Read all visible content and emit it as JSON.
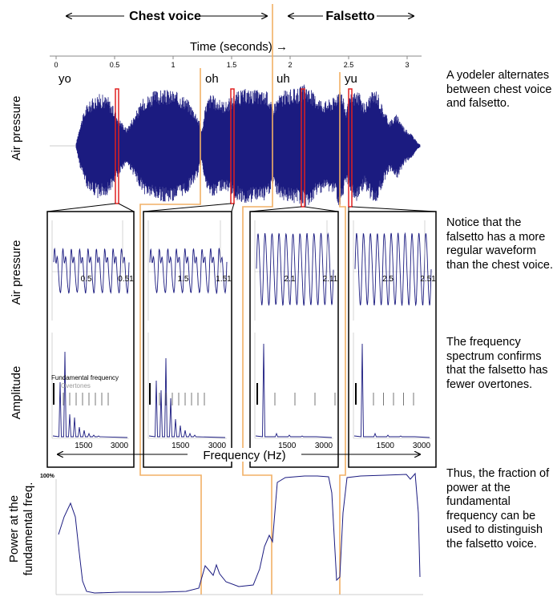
{
  "header": {
    "chest_label": "Chest voice",
    "falsetto_label": "Falsetto",
    "time_axis_label": "Time (seconds) →",
    "time_ticks": [
      "0",
      "0.5",
      "1",
      "1.5",
      "2",
      "2.5",
      "3"
    ],
    "syllables": [
      "yo",
      "oh",
      "uh",
      "yu"
    ]
  },
  "axis_labels": {
    "air_pressure_top": "Air pressure",
    "air_pressure_mid": "Air pressure",
    "amplitude": "Amplitude",
    "power_line1": "Power at the",
    "power_line2": "fundamental freq.",
    "frequency": "Frequency (Hz)"
  },
  "panels": [
    {
      "tick_left": "0.5",
      "tick_right": "0.51",
      "overtone_count": 8
    },
    {
      "tick_left": "1.5",
      "tick_right": "1.51",
      "overtone_count": 8
    },
    {
      "tick_left": "2.1",
      "tick_right": "2.11",
      "overtone_count": 4
    },
    {
      "tick_left": "2.5",
      "tick_right": "2.51",
      "overtone_count": 5
    }
  ],
  "spectrum_ticks": [
    "1500",
    "3000"
  ],
  "legend": {
    "fundamental": "Fundamental frequency",
    "overtones": "Overtones"
  },
  "power_chart": {
    "y_max_label": "100%"
  },
  "descriptions": {
    "d1": "A yodeler alternates between chest voice and falsetto.",
    "d2": "Notice that the falsetto has a more regular waveform than the chest voice.",
    "d3": "The frequency spectrum confirms that the falsetto has fewer overtones.",
    "d4": "Thus, the fraction of power at the fundamental frequency can be used to distinguish the falsetto voice."
  },
  "colors": {
    "waveform": "#1b1b80",
    "highlight": "#e02020",
    "orange": "#f2b066",
    "gray_axis": "#bbbbbb"
  }
}
